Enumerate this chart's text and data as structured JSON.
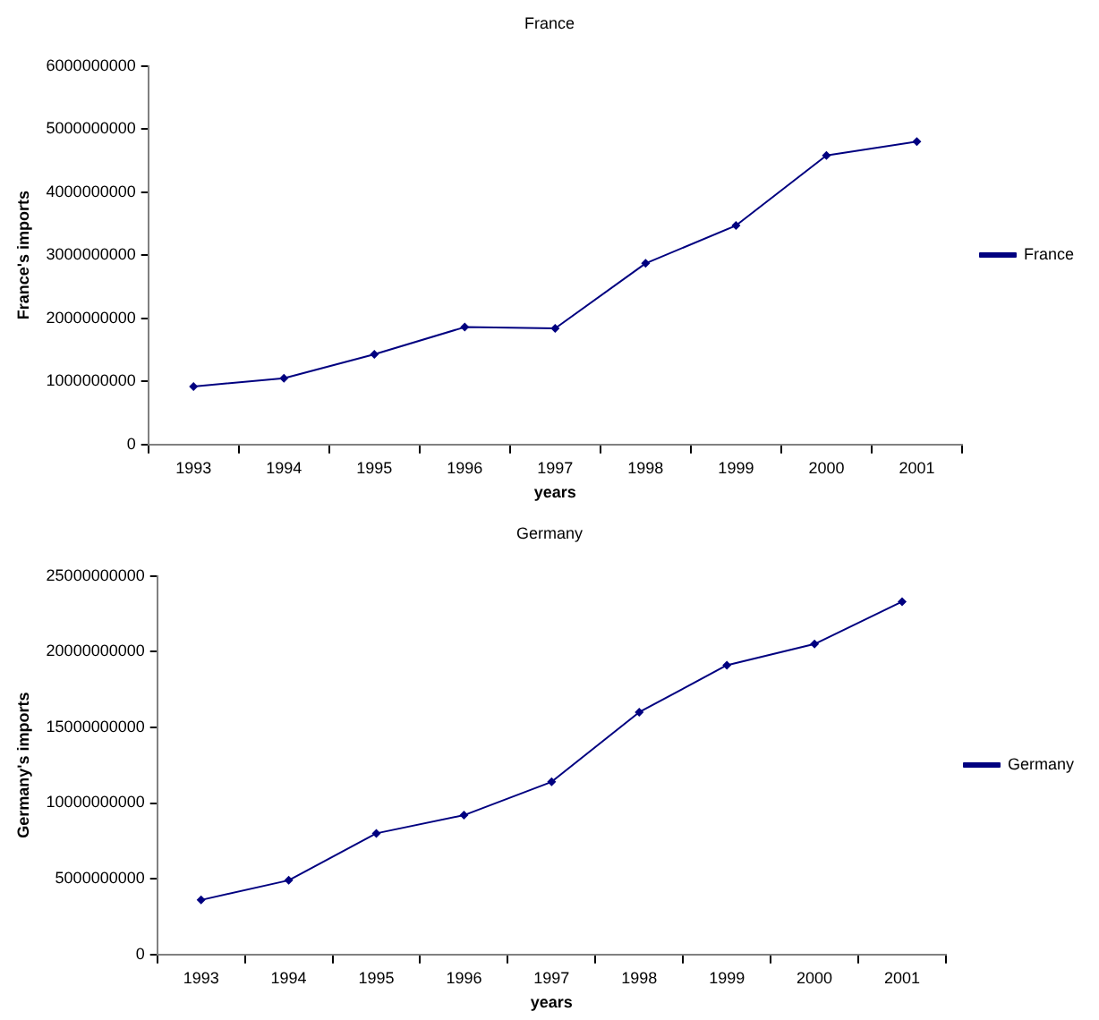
{
  "chart_data": [
    {
      "type": "line",
      "title": "France",
      "xlabel": "years",
      "ylabel": "France's imports",
      "categories": [
        "1993",
        "1994",
        "1995",
        "1996",
        "1997",
        "1998",
        "1999",
        "2000",
        "2001"
      ],
      "series": [
        {
          "name": "France",
          "color": "#000080",
          "values": [
            920000000,
            1050000000,
            1430000000,
            1860000000,
            1840000000,
            2870000000,
            3470000000,
            4580000000,
            4800000000
          ]
        }
      ],
      "ylim": [
        0,
        6000000000
      ],
      "yticks": [
        0,
        1000000000,
        2000000000,
        3000000000,
        4000000000,
        5000000000,
        6000000000
      ],
      "grid": false,
      "legend": "right",
      "marker": "diamond",
      "line_style": "solid"
    },
    {
      "type": "line",
      "title": "Germany",
      "xlabel": "years",
      "ylabel": "Germany's imports",
      "categories": [
        "1993",
        "1994",
        "1995",
        "1996",
        "1997",
        "1998",
        "1999",
        "2000",
        "2001"
      ],
      "series": [
        {
          "name": "Germany",
          "color": "#000080",
          "values": [
            3600000000,
            4900000000,
            8000000000,
            9200000000,
            11400000000,
            16000000000,
            19100000000,
            20500000000,
            23300000000
          ]
        }
      ],
      "ylim": [
        0,
        25000000000
      ],
      "yticks": [
        0,
        5000000000,
        10000000000,
        15000000000,
        20000000000,
        25000000000
      ],
      "grid": false,
      "legend": "right",
      "marker": "diamond",
      "line_style": "solid"
    }
  ]
}
